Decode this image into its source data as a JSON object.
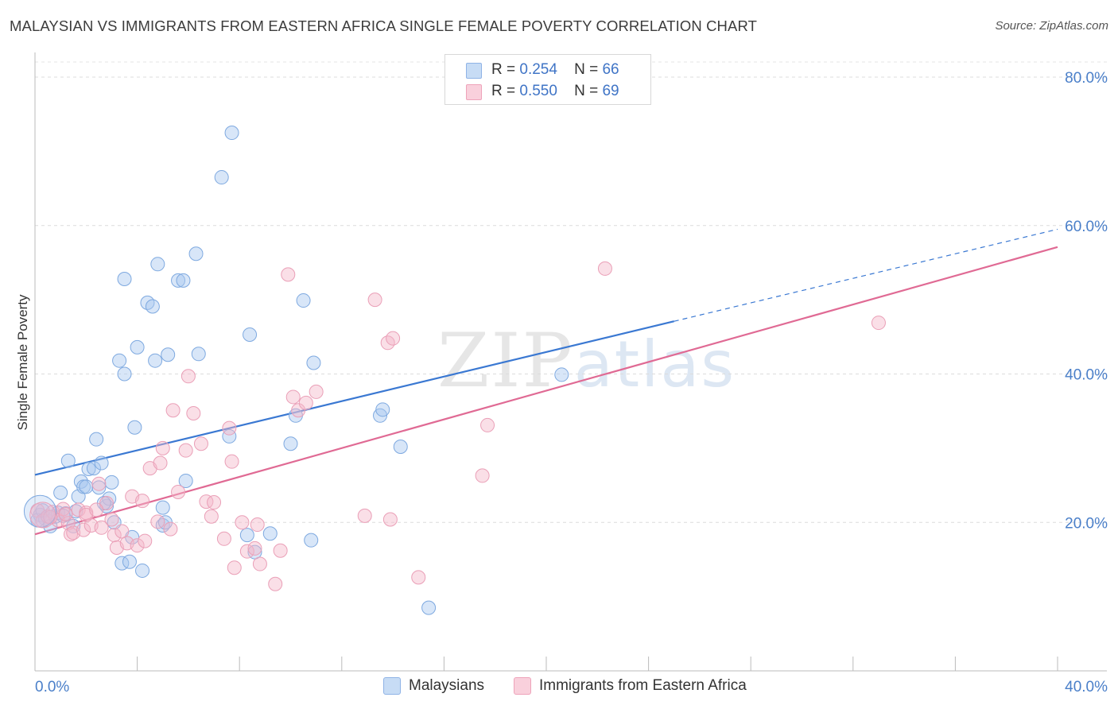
{
  "title": "MALAYSIAN VS IMMIGRANTS FROM EASTERN AFRICA SINGLE FEMALE POVERTY CORRELATION CHART",
  "source": "Source: ZipAtlas.com",
  "watermark": {
    "zip": "ZIP",
    "atlas": "atlas"
  },
  "legend_top": {
    "rows": [
      {
        "r_label": "R =",
        "r_value": "0.254",
        "n_label": "N =",
        "n_value": "66",
        "color": "#a9c8f0"
      },
      {
        "r_label": "R =",
        "r_value": "0.550",
        "n_label": "N =",
        "n_value": "69",
        "color": "#f5b8ca"
      }
    ]
  },
  "legend_bottom": {
    "items": [
      {
        "label": "Malaysians",
        "color": "#a9c8f0"
      },
      {
        "label": "Immigrants from Eastern Africa",
        "color": "#f5b8ca"
      }
    ]
  },
  "chart_data": {
    "type": "scatter",
    "title": "MALAYSIAN VS IMMIGRANTS FROM EASTERN AFRICA SINGLE FEMALE POVERTY CORRELATION CHART",
    "xlabel": "",
    "ylabel": "Single Female Poverty",
    "xlim": [
      0,
      40
    ],
    "ylim": [
      0,
      82
    ],
    "x_tick_labels": [
      "0.0%",
      "40.0%"
    ],
    "y_ticks": [
      20,
      40,
      60,
      80
    ],
    "y_tick_labels": [
      "20.0%",
      "40.0%",
      "60.0%",
      "80.0%"
    ],
    "grid": true,
    "legend_position": "top-center",
    "colors": {
      "malaysians": "#3a78d2",
      "eastern_africa": "#e06a94",
      "malaysians_fill": "#a9c8f0",
      "eastern_africa_fill": "#f5b8ca"
    },
    "series": [
      {
        "name": "Malaysians",
        "R": 0.254,
        "N": 66,
        "trend": {
          "x0": 0,
          "y0": 26.4,
          "x1": 25,
          "y1": 47.1,
          "dashed_to_x": 40,
          "dashed_to_y": 59.5
        },
        "points": [
          [
            0.2,
            21.0
          ],
          [
            0.4,
            20.5
          ],
          [
            0.6,
            19.5
          ],
          [
            0.8,
            20.8
          ],
          [
            0.9,
            21.3
          ],
          [
            1.0,
            24.0
          ],
          [
            1.2,
            21.2
          ],
          [
            1.3,
            28.3
          ],
          [
            1.5,
            19.5
          ],
          [
            1.6,
            21.5
          ],
          [
            1.7,
            23.5
          ],
          [
            1.8,
            25.5
          ],
          [
            1.9,
            24.8
          ],
          [
            2.0,
            24.8
          ],
          [
            2.1,
            27.2
          ],
          [
            2.3,
            27.3
          ],
          [
            2.4,
            31.2
          ],
          [
            2.5,
            24.7
          ],
          [
            2.6,
            28.0
          ],
          [
            2.8,
            22.2
          ],
          [
            2.9,
            23.2
          ],
          [
            3.0,
            25.4
          ],
          [
            3.1,
            20.0
          ],
          [
            3.3,
            41.8
          ],
          [
            3.4,
            14.5
          ],
          [
            3.5,
            52.8
          ],
          [
            3.5,
            40.0
          ],
          [
            3.7,
            14.7
          ],
          [
            3.8,
            18.0
          ],
          [
            3.9,
            32.8
          ],
          [
            4.0,
            43.6
          ],
          [
            4.2,
            13.5
          ],
          [
            4.4,
            49.6
          ],
          [
            4.6,
            49.1
          ],
          [
            4.7,
            41.8
          ],
          [
            4.8,
            54.8
          ],
          [
            5.0,
            22.0
          ],
          [
            5.0,
            19.6
          ],
          [
            5.1,
            20.0
          ],
          [
            5.2,
            42.6
          ],
          [
            5.6,
            52.6
          ],
          [
            5.8,
            52.6
          ],
          [
            5.9,
            25.6
          ],
          [
            6.3,
            56.2
          ],
          [
            6.4,
            42.7
          ],
          [
            7.3,
            66.5
          ],
          [
            7.7,
            72.5
          ],
          [
            7.6,
            31.6
          ],
          [
            8.4,
            45.3
          ],
          [
            8.3,
            18.3
          ],
          [
            8.6,
            16.0
          ],
          [
            9.2,
            18.5
          ],
          [
            10.0,
            30.6
          ],
          [
            10.2,
            34.4
          ],
          [
            10.5,
            49.9
          ],
          [
            10.8,
            17.6
          ],
          [
            10.9,
            41.5
          ],
          [
            13.5,
            34.4
          ],
          [
            13.6,
            35.2
          ],
          [
            14.3,
            30.2
          ],
          [
            15.4,
            8.5
          ],
          [
            20.6,
            39.9
          ],
          [
            0.1,
            20.3
          ],
          [
            0.3,
            21.6
          ],
          [
            1.1,
            20.9
          ],
          [
            2.7,
            22.6
          ]
        ]
      },
      {
        "name": "Immigrants from Eastern Africa",
        "R": 0.55,
        "N": 69,
        "trend": {
          "x0": 0,
          "y0": 18.4,
          "x1": 40,
          "y1": 57.1
        },
        "points": [
          [
            0.1,
            21.6
          ],
          [
            0.3,
            20.2
          ],
          [
            0.5,
            20.8
          ],
          [
            0.7,
            21.4
          ],
          [
            0.9,
            20.3
          ],
          [
            1.1,
            21.8
          ],
          [
            1.3,
            19.9
          ],
          [
            1.4,
            18.4
          ],
          [
            1.5,
            18.6
          ],
          [
            1.7,
            21.7
          ],
          [
            1.9,
            19.0
          ],
          [
            2.0,
            21.3
          ],
          [
            2.2,
            19.6
          ],
          [
            2.5,
            25.2
          ],
          [
            2.6,
            19.3
          ],
          [
            2.8,
            22.6
          ],
          [
            3.1,
            18.3
          ],
          [
            3.2,
            16.6
          ],
          [
            3.4,
            18.8
          ],
          [
            3.6,
            17.2
          ],
          [
            3.8,
            23.5
          ],
          [
            4.0,
            16.9
          ],
          [
            4.2,
            22.9
          ],
          [
            4.3,
            17.5
          ],
          [
            4.5,
            27.3
          ],
          [
            4.8,
            20.1
          ],
          [
            4.9,
            28.0
          ],
          [
            5.0,
            30.0
          ],
          [
            5.3,
            19.1
          ],
          [
            5.4,
            35.1
          ],
          [
            5.6,
            24.1
          ],
          [
            5.9,
            29.7
          ],
          [
            6.0,
            39.7
          ],
          [
            6.2,
            34.7
          ],
          [
            6.5,
            30.6
          ],
          [
            6.7,
            22.8
          ],
          [
            6.9,
            20.8
          ],
          [
            7.0,
            22.7
          ],
          [
            7.4,
            17.8
          ],
          [
            7.6,
            32.7
          ],
          [
            7.7,
            28.2
          ],
          [
            7.8,
            13.9
          ],
          [
            8.1,
            20.0
          ],
          [
            8.3,
            16.1
          ],
          [
            8.6,
            16.5
          ],
          [
            8.8,
            14.4
          ],
          [
            8.7,
            19.7
          ],
          [
            9.4,
            11.7
          ],
          [
            9.6,
            16.2
          ],
          [
            9.9,
            53.4
          ],
          [
            10.1,
            36.9
          ],
          [
            10.3,
            35.1
          ],
          [
            10.6,
            36.1
          ],
          [
            11.0,
            37.6
          ],
          [
            12.9,
            20.9
          ],
          [
            13.3,
            50.0
          ],
          [
            13.8,
            44.2
          ],
          [
            14.0,
            44.8
          ],
          [
            13.9,
            20.4
          ],
          [
            15.0,
            12.6
          ],
          [
            17.5,
            26.3
          ],
          [
            17.7,
            33.1
          ],
          [
            22.3,
            54.2
          ],
          [
            33.0,
            46.9
          ],
          [
            2.0,
            21.0
          ],
          [
            2.4,
            21.7
          ],
          [
            0.6,
            20.7
          ],
          [
            1.2,
            21.1
          ],
          [
            3.0,
            20.4
          ]
        ]
      }
    ]
  }
}
